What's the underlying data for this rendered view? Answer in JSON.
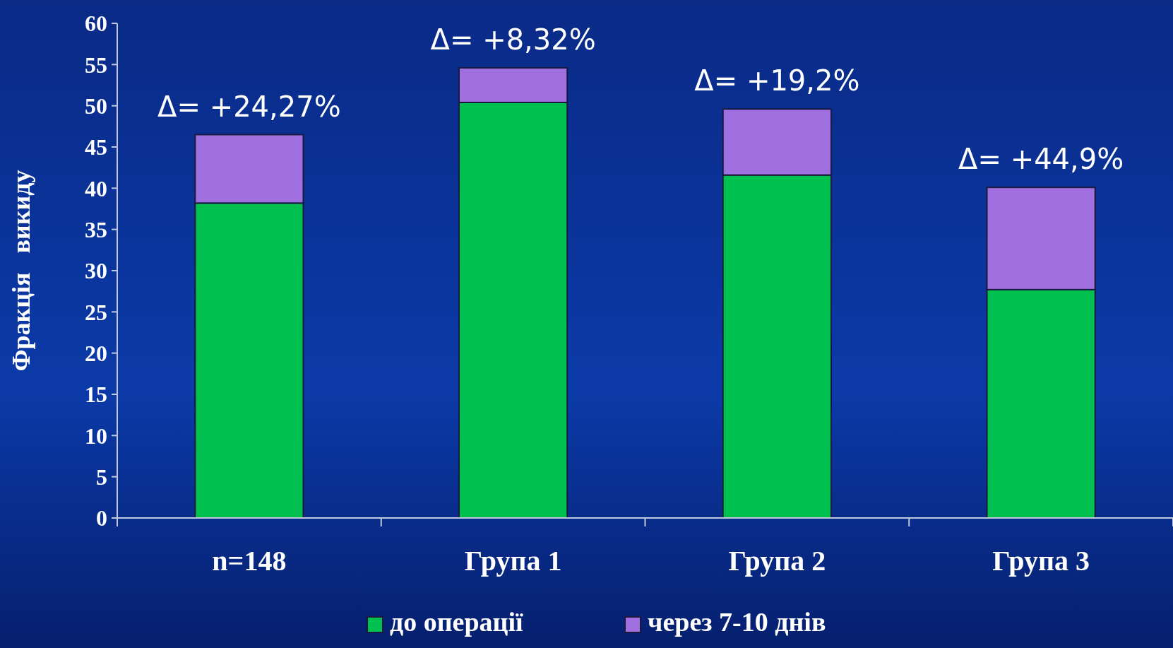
{
  "chart_data": {
    "type": "bar",
    "stacked": true,
    "ylabel": "Фракція   викиду",
    "categories": [
      "n=148",
      "Група 1",
      "Група 2",
      "Група 3"
    ],
    "series": [
      {
        "name": "до операції",
        "color": "#00c050",
        "values": [
          38.2,
          50.4,
          41.6,
          27.7
        ]
      },
      {
        "name": "через 7-10 днів",
        "color": "#a070e0",
        "values": [
          8.3,
          4.2,
          8.0,
          12.4
        ]
      }
    ],
    "ylim": [
      0,
      60
    ],
    "yticks": [
      0,
      5,
      10,
      15,
      20,
      25,
      30,
      35,
      40,
      45,
      50,
      55,
      60
    ],
    "grid": false,
    "legend": "bottom",
    "annotations": [
      {
        "text": "Δ= +24,27%",
        "x": "n=148",
        "y": 46.5
      },
      {
        "text": "Δ= +8,32%",
        "x": "Група 1",
        "y": 54.6
      },
      {
        "text": "Δ= +19,2%",
        "x": "Група 2",
        "y": 49.6
      },
      {
        "text": "Δ= +44,9%",
        "x": "Група 3",
        "y": 40.1
      }
    ]
  }
}
